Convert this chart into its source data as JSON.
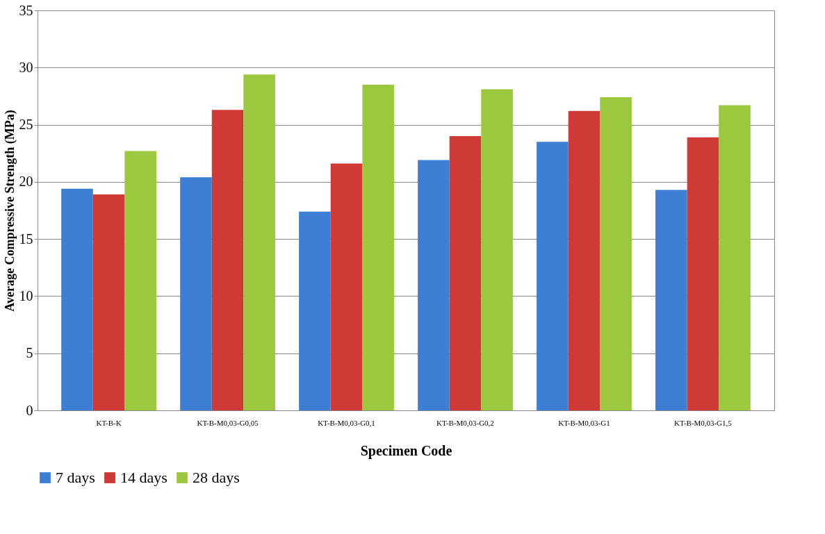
{
  "chart_data": {
    "type": "bar",
    "xlabel": "Specimen Code",
    "ylabel": "Average Compressive Strength (MPa)",
    "categories": [
      "KT-B-K",
      "KT-B-M0,03-G0,05",
      "KT-B-M0,03-G0,1",
      "KT-B-M0,03-G0,2",
      "KT-B-M0,03-G1",
      "KT-B-M0,03-G1,5"
    ],
    "series": [
      {
        "name": "7 days",
        "color": "#3d7fd4",
        "values": [
          19.4,
          20.4,
          17.4,
          21.9,
          23.5,
          19.3
        ]
      },
      {
        "name": "14 days",
        "color": "#d03a36",
        "values": [
          18.9,
          26.3,
          21.6,
          24.0,
          26.2,
          23.9
        ]
      },
      {
        "name": "28 days",
        "color": "#9bc83e",
        "values": [
          22.7,
          29.4,
          28.5,
          28.1,
          27.4,
          26.7
        ]
      }
    ],
    "ylim": [
      0,
      35
    ],
    "yticks": [
      0,
      5,
      10,
      15,
      20,
      25,
      30,
      35
    ],
    "grid": "y",
    "legend": "bottom"
  }
}
